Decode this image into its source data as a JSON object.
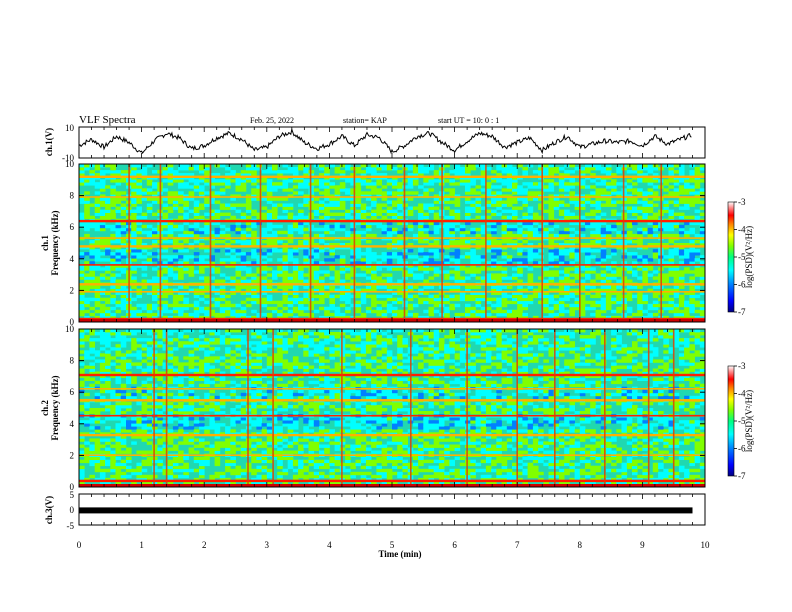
{
  "header": {
    "title": "VLF Spectra",
    "date": "Feb. 25, 2022",
    "station": "station= KAP",
    "start": "start  UT  =   10: 0  : 1"
  },
  "colors": {
    "spectrogram_scale": [
      "#000080",
      "#0000ff",
      "#0080ff",
      "#00ffff",
      "#00ff80",
      "#80ff00",
      "#ffff00",
      "#ff8000",
      "#ff0000",
      "#ff8080",
      "#ffffff"
    ]
  },
  "chart_data": [
    {
      "type": "line",
      "name": "waveform-ch1",
      "ylabel": "ch.1(V)",
      "ylim": [
        -10,
        10
      ],
      "yticks": [
        "10",
        "-10"
      ],
      "xlim": [
        0,
        10
      ],
      "x": [
        0,
        0.2,
        0.4,
        0.6,
        0.8,
        1.0,
        1.2,
        1.4,
        1.6,
        1.8,
        2.0,
        2.2,
        2.4,
        2.6,
        2.8,
        3.0,
        3.2,
        3.4,
        3.6,
        3.8,
        4.0,
        4.2,
        4.4,
        4.6,
        4.8,
        5.0,
        5.2,
        5.4,
        5.6,
        5.8,
        6.0,
        6.2,
        6.4,
        6.6,
        6.8,
        7.0,
        7.2,
        7.4,
        7.6,
        7.8,
        8.0,
        8.2,
        8.4,
        8.6,
        8.8,
        9.0,
        9.2,
        9.4,
        9.6,
        9.8
      ],
      "values": [
        -2,
        2,
        -3,
        4,
        0,
        -7,
        1,
        6,
        3,
        -4,
        -2,
        3,
        6,
        2,
        -5,
        -3,
        4,
        7,
        0,
        -4,
        -1,
        4,
        -2,
        5,
        3,
        -6,
        -2,
        4,
        6,
        0,
        -5,
        1,
        6,
        4,
        -3,
        0,
        3,
        -5,
        0,
        4,
        -3,
        -1,
        1,
        0,
        1,
        -2,
        4,
        -1,
        2,
        5
      ]
    },
    {
      "type": "heatmap",
      "name": "spectrogram-ch1",
      "ylabel": "Frequency (kHz)",
      "channel_label": "ch.1",
      "xlim": [
        0,
        10
      ],
      "ylim": [
        0,
        10
      ],
      "yticks": [
        "0",
        "2",
        "4",
        "6",
        "8",
        "10"
      ],
      "colorbar": {
        "label": "log(PSD)(V²/Hz)",
        "ticks": [
          "-3",
          "-4",
          "-5",
          "-6",
          "-7"
        ],
        "range": [
          -7,
          -3
        ]
      },
      "bands_khz": [
        0.2,
        1.9,
        2.4,
        3.6,
        4.8,
        5.3,
        6.4,
        7.9,
        9.2
      ],
      "impulse_minutes": [
        0.8,
        1.3,
        2.1,
        2.9,
        3.7,
        4.4,
        5.2,
        5.8,
        6.5,
        7.4,
        8.0,
        8.7,
        9.3
      ]
    },
    {
      "type": "heatmap",
      "name": "spectrogram-ch2",
      "ylabel": "Frequency (kHz)",
      "channel_label": "ch.2",
      "xlim": [
        0,
        10
      ],
      "ylim": [
        0,
        10
      ],
      "yticks": [
        "0",
        "2",
        "4",
        "6",
        "8",
        "10"
      ],
      "colorbar": {
        "label": "log(PSD)(V²/Hz)",
        "ticks": [
          "-3",
          "-4",
          "-5",
          "-6",
          "-7"
        ],
        "range": [
          -7,
          -3
        ]
      },
      "bands_khz": [
        0.4,
        2.0,
        3.3,
        4.5,
        5.5,
        6.2,
        7.1
      ],
      "impulse_minutes": [
        1.2,
        1.4,
        2.7,
        3.1,
        4.2,
        5.3,
        6.2,
        7.0,
        7.6,
        8.4,
        9.1,
        9.5
      ]
    },
    {
      "type": "line",
      "name": "waveform-ch3",
      "ylabel": "ch.3(V)",
      "ylim": [
        -5,
        5
      ],
      "yticks": [
        "5",
        "0",
        "-5"
      ],
      "x": [
        0,
        9.8
      ],
      "values": [
        -0.3,
        -0.3
      ],
      "xlim": [
        0,
        10
      ],
      "xticks": [
        "0",
        "1",
        "2",
        "3",
        "4",
        "5",
        "6",
        "7",
        "8",
        "9",
        "10"
      ],
      "xlabel": "Time (min)"
    }
  ]
}
